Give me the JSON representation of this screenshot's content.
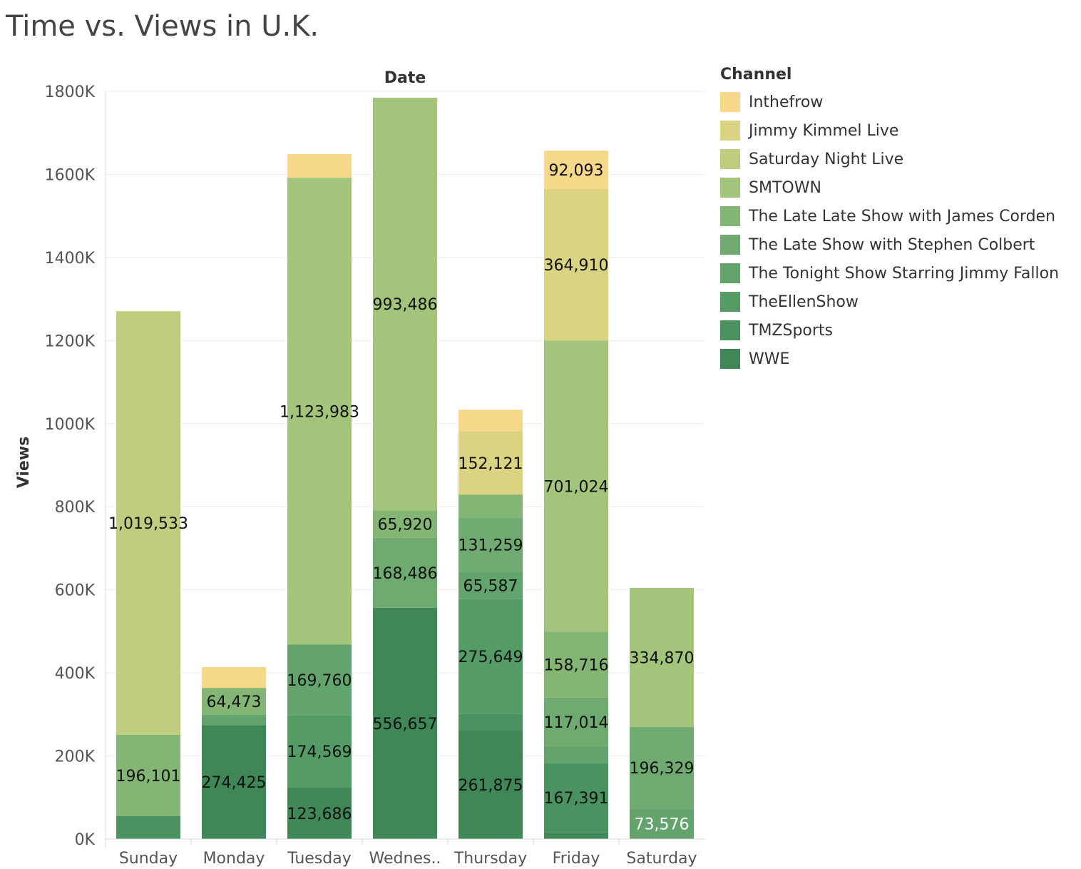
{
  "chart_data": {
    "type": "bar",
    "stacked": true,
    "title": "Time vs. Views in U.K.",
    "x_header": "Date",
    "ylabel": "Views",
    "ylim": [
      0,
      1800000
    ],
    "y_ticks": [
      0,
      200000,
      400000,
      600000,
      800000,
      1000000,
      1200000,
      1400000,
      1600000,
      1800000
    ],
    "y_tick_labels": [
      "0K",
      "200K",
      "400K",
      "600K",
      "800K",
      "1000K",
      "1200K",
      "1400K",
      "1600K",
      "1800K"
    ],
    "categories": [
      "Sunday",
      "Monday",
      "Tuesday",
      "Wednes..",
      "Thursday",
      "Friday",
      "Saturday"
    ],
    "legend_title": "Channel",
    "legend_position": "right",
    "grid": true,
    "series": [
      {
        "name": "WWE",
        "color": "#3f8757",
        "values": [
          0,
          274425,
          123686,
          556657,
          261875,
          16000,
          0
        ],
        "labels": [
          "",
          "274,425",
          "123,686",
          "556,657",
          "261,875",
          "",
          ""
        ]
      },
      {
        "name": "TMZSports",
        "color": "#4a9260",
        "values": [
          55000,
          0,
          0,
          0,
          40000,
          167391,
          0
        ],
        "labels": [
          "",
          "",
          "",
          "",
          "",
          "167,391",
          ""
        ]
      },
      {
        "name": "TheEllenShow",
        "color": "#559b66",
        "values": [
          0,
          0,
          174569,
          0,
          275649,
          0,
          0
        ],
        "labels": [
          "",
          "",
          "174,569",
          "",
          "275,649",
          "",
          ""
        ]
      },
      {
        "name": "The Tonight Show Starring Jimmy Fallon",
        "color": "#62a46c",
        "values": [
          0,
          25000,
          169760,
          0,
          65587,
          40000,
          73576
        ],
        "labels": [
          "",
          "",
          "169,760",
          "",
          "65,587",
          "",
          "73,576"
        ]
      },
      {
        "name": "The Late Show with Stephen Colbert",
        "color": "#6fab71",
        "values": [
          0,
          0,
          0,
          168486,
          131259,
          117014,
          196329
        ],
        "labels": [
          "",
          "",
          "",
          "168,486",
          "131,259",
          "117,014",
          "196,329"
        ]
      },
      {
        "name": "The Late Late Show with James Corden",
        "color": "#83b674",
        "values": [
          196101,
          64473,
          0,
          65920,
          55000,
          158716,
          0
        ],
        "labels": [
          "196,101",
          "64,473",
          "",
          "65,920",
          "",
          "158,716",
          ""
        ]
      },
      {
        "name": "SMTOWN",
        "color": "#a2c47b",
        "values": [
          0,
          0,
          1123983,
          993486,
          0,
          701024,
          334870
        ],
        "labels": [
          "",
          "",
          "1,123,983",
          "993,486",
          "",
          "701,024",
          "334,870"
        ]
      },
      {
        "name": "Saturday Night Live",
        "color": "#bece7e",
        "values": [
          1019533,
          0,
          0,
          0,
          0,
          0,
          0
        ],
        "labels": [
          "1,019,533",
          "",
          "",
          "",
          "",
          "",
          ""
        ]
      },
      {
        "name": "Jimmy Kimmel Live",
        "color": "#d9d382",
        "values": [
          0,
          0,
          0,
          0,
          152121,
          364910,
          0
        ],
        "labels": [
          "",
          "",
          "",
          "",
          "152,121",
          "364,910",
          ""
        ]
      },
      {
        "name": "Inthefrow",
        "color": "#f6d88b",
        "values": [
          0,
          50000,
          57000,
          0,
          52000,
          92093,
          0
        ],
        "labels": [
          "",
          "",
          "",
          "",
          "",
          "92,093",
          ""
        ]
      }
    ]
  }
}
